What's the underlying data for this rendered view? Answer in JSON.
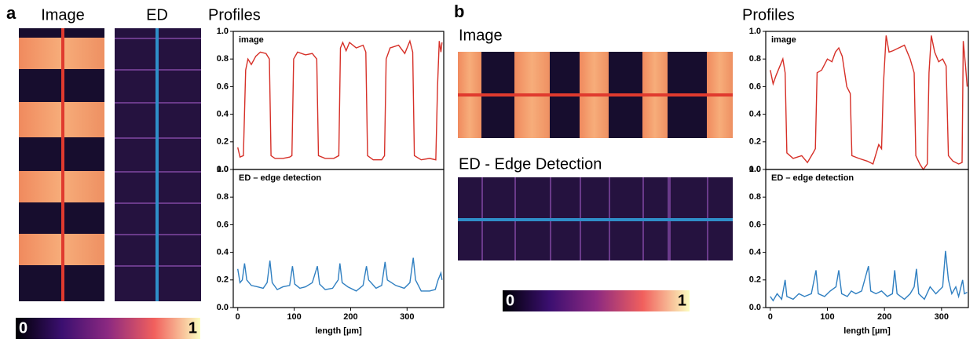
{
  "panels": [
    {
      "label": "a",
      "titles": [
        "Image",
        "ED",
        "Profiles"
      ],
      "colorbar": [
        0,
        1
      ]
    },
    {
      "label": "b",
      "titles": [
        "Image",
        "ED - Edge Detection",
        "Profiles"
      ],
      "colorbar": [
        0,
        1
      ]
    }
  ],
  "chart_data": [
    {
      "type": "line",
      "title": "image",
      "color": "#d62f27",
      "xlim": [
        -8,
        365
      ],
      "ylim": [
        0,
        1
      ],
      "yticks": [
        {
          "value": 0,
          "label": "0.0"
        },
        0.2,
        0.4,
        0.6,
        0.8,
        {
          "value": 1,
          "label": "1.0"
        }
      ],
      "x": [
        0,
        4,
        10,
        14,
        18,
        24,
        32,
        40,
        50,
        56,
        59,
        66,
        80,
        92,
        96,
        99,
        106,
        120,
        132,
        140,
        143,
        155,
        170,
        179,
        182,
        186,
        192,
        198,
        210,
        222,
        227,
        230,
        240,
        255,
        260,
        263,
        270,
        285,
        296,
        305,
        310,
        313,
        325,
        340,
        351,
        354,
        357,
        360,
        362
      ],
      "values": [
        0.16,
        0.09,
        0.1,
        0.72,
        0.8,
        0.76,
        0.82,
        0.85,
        0.84,
        0.8,
        0.1,
        0.08,
        0.08,
        0.09,
        0.1,
        0.8,
        0.85,
        0.83,
        0.84,
        0.8,
        0.1,
        0.08,
        0.08,
        0.1,
        0.88,
        0.92,
        0.86,
        0.92,
        0.88,
        0.9,
        0.85,
        0.1,
        0.07,
        0.07,
        0.1,
        0.8,
        0.88,
        0.9,
        0.84,
        0.93,
        0.85,
        0.1,
        0.07,
        0.08,
        0.07,
        0.6,
        0.93,
        0.85,
        0.92
      ]
    },
    {
      "type": "line",
      "title": "ED – edge detection",
      "color": "#2f7fc1",
      "xlim": [
        -8,
        365
      ],
      "ylim": [
        0,
        1
      ],
      "yticks": [
        {
          "value": 0,
          "label": "0.0"
        },
        0.2,
        0.4,
        0.6,
        0.8,
        {
          "value": 1,
          "label": "1.0"
        }
      ],
      "xticks": [
        0,
        100,
        200,
        300
      ],
      "xlabel": "length [µm]",
      "x": [
        0,
        4,
        8,
        12,
        16,
        24,
        35,
        45,
        52,
        57,
        61,
        70,
        80,
        92,
        97,
        101,
        110,
        120,
        132,
        141,
        145,
        155,
        168,
        178,
        181,
        185,
        195,
        210,
        222,
        228,
        232,
        245,
        255,
        261,
        265,
        280,
        295,
        305,
        311,
        315,
        325,
        340,
        350,
        355,
        360,
        362
      ],
      "values": [
        0.28,
        0.18,
        0.2,
        0.32,
        0.2,
        0.16,
        0.15,
        0.14,
        0.18,
        0.34,
        0.18,
        0.13,
        0.15,
        0.16,
        0.3,
        0.17,
        0.14,
        0.15,
        0.18,
        0.3,
        0.17,
        0.13,
        0.14,
        0.2,
        0.32,
        0.18,
        0.15,
        0.12,
        0.16,
        0.3,
        0.2,
        0.14,
        0.16,
        0.33,
        0.2,
        0.16,
        0.14,
        0.18,
        0.36,
        0.2,
        0.12,
        0.12,
        0.13,
        0.2,
        0.25,
        0.2
      ]
    },
    {
      "type": "line",
      "title": "image",
      "color": "#d62f27",
      "xlim": [
        -8,
        347
      ],
      "ylim": [
        0,
        1
      ],
      "yticks": [
        {
          "value": 0,
          "label": "0.0"
        },
        0.2,
        0.4,
        0.6,
        0.8,
        {
          "value": 1,
          "label": "1.0"
        }
      ],
      "x": [
        0,
        5,
        10,
        16,
        22,
        26,
        29,
        40,
        55,
        65,
        75,
        79,
        82,
        90,
        100,
        108,
        114,
        120,
        126,
        134,
        140,
        143,
        155,
        170,
        180,
        190,
        195,
        198,
        203,
        208,
        215,
        225,
        235,
        245,
        252,
        255,
        262,
        268,
        275,
        278,
        282,
        288,
        295,
        302,
        308,
        312,
        320,
        330,
        336,
        338,
        342,
        345
      ],
      "values": [
        0.72,
        0.62,
        0.68,
        0.74,
        0.8,
        0.7,
        0.12,
        0.08,
        0.1,
        0.05,
        0.12,
        0.15,
        0.7,
        0.72,
        0.8,
        0.78,
        0.85,
        0.88,
        0.82,
        0.6,
        0.55,
        0.1,
        0.08,
        0.06,
        0.04,
        0.18,
        0.15,
        0.6,
        0.97,
        0.85,
        0.86,
        0.88,
        0.9,
        0.8,
        0.7,
        0.1,
        0.04,
        0,
        0.04,
        0.7,
        0.97,
        0.85,
        0.78,
        0.8,
        0.75,
        0.1,
        0.06,
        0.04,
        0.05,
        0.93,
        0.75,
        0.6
      ]
    },
    {
      "type": "line",
      "title": "ED – edge detection",
      "color": "#2f7fc1",
      "xlim": [
        -8,
        347
      ],
      "ylim": [
        0,
        1
      ],
      "yticks": [
        {
          "value": 0,
          "label": "0.0"
        },
        0.2,
        0.4,
        0.6,
        0.8,
        {
          "value": 1,
          "label": "1.0"
        }
      ],
      "xticks": [
        0,
        100,
        200,
        300
      ],
      "xlabel": "length [µm]",
      "x": [
        0,
        5,
        12,
        20,
        26,
        29,
        40,
        50,
        60,
        72,
        80,
        84,
        95,
        105,
        115,
        120,
        125,
        135,
        142,
        150,
        160,
        172,
        176,
        185,
        195,
        205,
        214,
        218,
        222,
        235,
        245,
        252,
        256,
        260,
        270,
        280,
        290,
        302,
        307,
        312,
        318,
        325,
        330,
        337,
        340,
        345
      ],
      "values": [
        0.08,
        0.05,
        0.1,
        0.06,
        0.2,
        0.08,
        0.06,
        0.1,
        0.08,
        0.1,
        0.27,
        0.1,
        0.08,
        0.12,
        0.15,
        0.27,
        0.1,
        0.08,
        0.12,
        0.1,
        0.12,
        0.3,
        0.12,
        0.1,
        0.12,
        0.08,
        0.1,
        0.27,
        0.1,
        0.06,
        0.1,
        0.15,
        0.28,
        0.1,
        0.06,
        0.15,
        0.1,
        0.15,
        0.41,
        0.2,
        0.1,
        0.15,
        0.08,
        0.2,
        0.1,
        0.11
      ]
    }
  ]
}
